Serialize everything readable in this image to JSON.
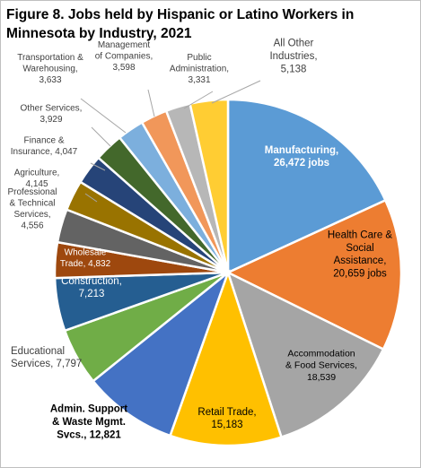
{
  "title": "Figure 8. Jobs held by Hispanic or Latino Workers in Minnesota by Industry, 2021",
  "chart_data": {
    "type": "pie",
    "title": "Figure 8. Jobs held by Hispanic or Latino Workers in Minnesota by Industry, 2021",
    "slices": [
      {
        "name": "Manufacturing",
        "value": 26472,
        "label": [
          "Manufacturing,",
          "26,472 jobs"
        ],
        "color": "#5b9bd5",
        "label_color": "#ffffff",
        "inside": true,
        "bold": true
      },
      {
        "name": "Health Care & Social Assistance",
        "value": 20659,
        "label": [
          "Health Care &",
          "Social",
          "Assistance,",
          "20,659 jobs"
        ],
        "color": "#ed7d31",
        "label_color": "#000000",
        "inside": true,
        "bold": false
      },
      {
        "name": "Accommodation & Food Services",
        "value": 18539,
        "label": [
          "Accommodation",
          "& Food Services,",
          "18,539"
        ],
        "color": "#a5a5a5",
        "label_color": "#000000",
        "inside": true,
        "bold": false
      },
      {
        "name": "Retail Trade",
        "value": 15183,
        "label": [
          "Retail Trade,",
          "15,183"
        ],
        "color": "#ffc000",
        "label_color": "#000000",
        "inside": true,
        "bold": false
      },
      {
        "name": "Admin. Support & Waste Mgmt. Svcs.",
        "value": 12821,
        "label": [
          "Admin. Support",
          "& Waste Mgmt.",
          "Svcs., 12,821"
        ],
        "color": "#4472c4",
        "label_color": "#000000",
        "inside": false,
        "bold": true
      },
      {
        "name": "Educational Services",
        "value": 7797,
        "label": [
          "Educational",
          "Services, 7,797"
        ],
        "color": "#70ad47",
        "label_color": "#404040",
        "inside": false,
        "bold": false
      },
      {
        "name": "Construction",
        "value": 7213,
        "label": [
          "Construction,",
          "7,213"
        ],
        "color": "#255e91",
        "label_color": "#ffffff",
        "inside": true,
        "bold": false
      },
      {
        "name": "Wholesale Trade",
        "value": 4832,
        "label": [
          "Wholesale",
          "Trade, 4,832"
        ],
        "color": "#9e480e",
        "label_color": "#ffffff",
        "inside": true,
        "bold": false
      },
      {
        "name": "Professional & Technical Services",
        "value": 4556,
        "label": [
          "Professional",
          "& Technical",
          "Services,",
          "4,556"
        ],
        "color": "#636363",
        "label_color": "#404040",
        "inside": false,
        "bold": false
      },
      {
        "name": "Agriculture",
        "value": 4145,
        "label": [
          "Agriculture,",
          "4,145"
        ],
        "color": "#997300",
        "label_color": "#404040",
        "inside": false,
        "bold": false
      },
      {
        "name": "Finance & Insurance",
        "value": 4047,
        "label": [
          "Finance &",
          "Insurance, 4,047"
        ],
        "color": "#264478",
        "label_color": "#404040",
        "inside": false,
        "bold": false
      },
      {
        "name": "Other Services",
        "value": 3929,
        "label": [
          "Other Services,",
          "3,929"
        ],
        "color": "#43682b",
        "label_color": "#404040",
        "inside": false,
        "bold": false
      },
      {
        "name": "Transportation & Warehousing",
        "value": 3633,
        "label": [
          "Transportation &",
          "Warehousing,",
          "3,633"
        ],
        "color": "#7cafdd",
        "label_color": "#404040",
        "inside": false,
        "bold": false
      },
      {
        "name": "Management of Companies",
        "value": 3598,
        "label": [
          "Management",
          "of Companies,",
          "3,598"
        ],
        "color": "#f1975a",
        "label_color": "#404040",
        "inside": false,
        "bold": false
      },
      {
        "name": "Public Administration",
        "value": 3331,
        "label": [
          "Public",
          "Administration,",
          "3,331"
        ],
        "color": "#b7b7b7",
        "label_color": "#404040",
        "inside": false,
        "bold": false
      },
      {
        "name": "All Other Industries",
        "value": 5138,
        "label": [
          "All Other",
          "Industries,",
          "5,138"
        ],
        "color": "#ffcd33",
        "label_color": "#404040",
        "inside": false,
        "bold": false
      }
    ]
  }
}
